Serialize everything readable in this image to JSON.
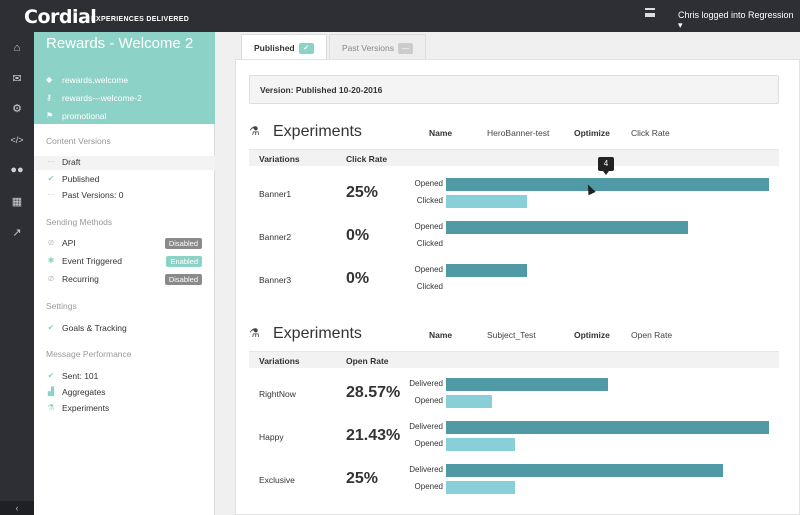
{
  "topbar": {
    "logo": "Cordial",
    "logo_tagline": "EXPERIENCES DELIVERED",
    "user_label": "Chris logged into Regression ▾"
  },
  "nav_icons": [
    "home-icon",
    "mail-icon",
    "cogs-icon",
    "code-icon",
    "users-icon",
    "table-icon",
    "chart-icon"
  ],
  "sidebar": {
    "title": "Rewards - Welcome 2",
    "tags": "rewards,welcome",
    "key": "rewards---welcome-2",
    "category": "promotional",
    "content_versions_label": "Content Versions",
    "versions": [
      {
        "label": "Draft",
        "icon": "ellipsis-icon"
      },
      {
        "label": "Published",
        "icon": "check-icon"
      },
      {
        "label": "Past Versions: 0",
        "icon": "ellipsis-icon"
      }
    ],
    "sending_methods_label": "Sending Methods",
    "sending_methods": [
      {
        "label": "API",
        "status": "Disabled"
      },
      {
        "label": "Event Triggered",
        "status": "Enabled"
      },
      {
        "label": "Recurring",
        "status": "Disabled"
      }
    ],
    "settings_label": "Settings",
    "goals_label": "Goals & Tracking",
    "performance_label": "Message Performance",
    "performance": [
      {
        "label": "Sent: 101",
        "icon": "check-icon"
      },
      {
        "label": "Aggregates",
        "icon": "bar-chart-icon"
      },
      {
        "label": "Experiments",
        "icon": "flask-icon"
      }
    ],
    "collapse_label": "‹"
  },
  "tabs": [
    {
      "label": "Published",
      "active": true,
      "chip": "✓"
    },
    {
      "label": "Past Versions",
      "active": false,
      "chip": "—"
    }
  ],
  "version_banner": "Version: Published 10-20-2016",
  "experiments": [
    {
      "title": "Experiments",
      "name_label": "Name",
      "name_value": "HeroBanner-test",
      "optimize_label": "Optimize",
      "optimize_value": "Click Rate",
      "col_variations": "Variations",
      "col_rate": "Click Rate",
      "bar_labels": [
        "Opened",
        "Clicked"
      ],
      "rows": [
        {
          "name": "Banner1",
          "rate": "25%",
          "bar1": 1.0,
          "bar2": 0.25
        },
        {
          "name": "Banner2",
          "rate": "0%",
          "bar1": 0.75,
          "bar2": 0
        },
        {
          "name": "Banner3",
          "rate": "0%",
          "bar1": 0.25,
          "bar2": 0
        }
      ]
    },
    {
      "title": "Experiments",
      "name_label": "Name",
      "name_value": "Subject_Test",
      "optimize_label": "Optimize",
      "optimize_value": "Open Rate",
      "col_variations": "Variations",
      "col_rate": "Open Rate",
      "bar_labels": [
        "Delivered",
        "Opened"
      ],
      "rows": [
        {
          "name": "RightNow",
          "rate": "28.57%",
          "bar1": 0.5,
          "bar2": 0.143
        },
        {
          "name": "Happy",
          "rate": "21.43%",
          "bar1": 1.0,
          "bar2": 0.214
        },
        {
          "name": "Exclusive",
          "rate": "25%",
          "bar1": 0.857,
          "bar2": 0.214
        }
      ]
    }
  ],
  "tooltip_value": "4"
}
